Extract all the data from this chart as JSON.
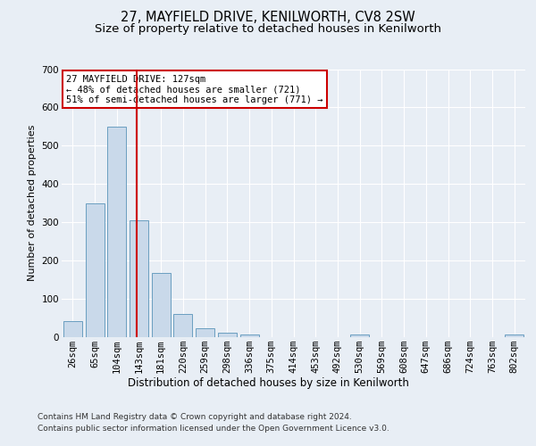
{
  "title1": "27, MAYFIELD DRIVE, KENILWORTH, CV8 2SW",
  "title2": "Size of property relative to detached houses in Kenilworth",
  "xlabel": "Distribution of detached houses by size in Kenilworth",
  "ylabel": "Number of detached properties",
  "bar_labels": [
    "26sqm",
    "65sqm",
    "104sqm",
    "143sqm",
    "181sqm",
    "220sqm",
    "259sqm",
    "298sqm",
    "336sqm",
    "375sqm",
    "414sqm",
    "453sqm",
    "492sqm",
    "530sqm",
    "569sqm",
    "608sqm",
    "647sqm",
    "686sqm",
    "724sqm",
    "763sqm",
    "802sqm"
  ],
  "bar_values": [
    42,
    350,
    550,
    305,
    168,
    60,
    22,
    11,
    6,
    0,
    0,
    0,
    0,
    5,
    0,
    0,
    0,
    0,
    0,
    0,
    6
  ],
  "bar_color": "#c9d9ea",
  "bar_edge_color": "#6a9ec0",
  "vline_color": "#cc0000",
  "annotation_text": "27 MAYFIELD DRIVE: 127sqm\n← 48% of detached houses are smaller (721)\n51% of semi-detached houses are larger (771) →",
  "annotation_box_color": "#ffffff",
  "annotation_box_edge": "#cc0000",
  "ylim": [
    0,
    700
  ],
  "yticks": [
    0,
    100,
    200,
    300,
    400,
    500,
    600,
    700
  ],
  "bg_color": "#e8eef5",
  "plot_bg_color": "#e8eef5",
  "footer1": "Contains HM Land Registry data © Crown copyright and database right 2024.",
  "footer2": "Contains public sector information licensed under the Open Government Licence v3.0.",
  "title1_fontsize": 10.5,
  "title2_fontsize": 9.5,
  "xlabel_fontsize": 8.5,
  "ylabel_fontsize": 8,
  "tick_fontsize": 7.5,
  "footer_fontsize": 6.5
}
